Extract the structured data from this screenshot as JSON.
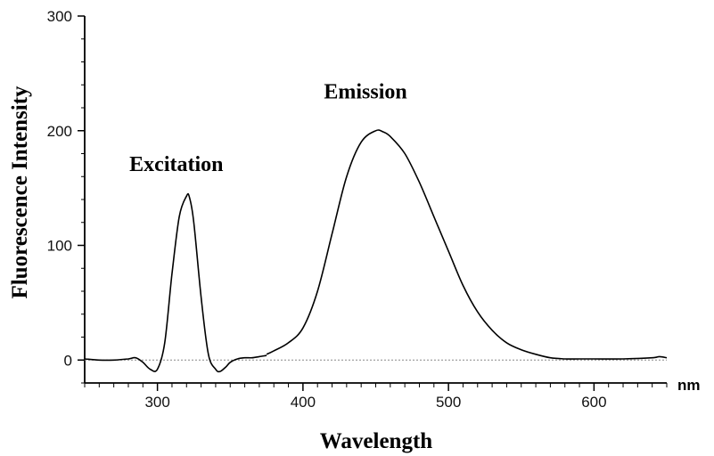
{
  "chart_data": {
    "type": "line",
    "xlabel": "Wavelength",
    "ylabel": "Fluorescence Intensity",
    "x_unit": "nm",
    "xlim": [
      250,
      650
    ],
    "ylim": [
      -20,
      300
    ],
    "x_ticks": [
      300,
      400,
      500,
      600
    ],
    "y_ticks": [
      0,
      100,
      200,
      300
    ],
    "baseline": 0,
    "grid": false,
    "line_color": "#000000",
    "annotations": [
      {
        "text": "Excitation",
        "x": 313,
        "y": 165
      },
      {
        "text": "Emission",
        "x": 443,
        "y": 228
      }
    ],
    "series": [
      {
        "name": "Excitation",
        "x": [
          250,
          260,
          270,
          280,
          285,
          290,
          295,
          300,
          305,
          310,
          315,
          320,
          322,
          325,
          330,
          335,
          340,
          343,
          347,
          350,
          355,
          360,
          365,
          370,
          375
        ],
        "y": [
          1,
          0,
          0,
          1,
          2,
          -2,
          -8,
          -8,
          15,
          75,
          125,
          143,
          142,
          120,
          55,
          5,
          -8,
          -10,
          -6,
          -2,
          1,
          2,
          2,
          3,
          4
        ]
      },
      {
        "name": "Emission",
        "x": [
          375,
          380,
          390,
          400,
          410,
          420,
          430,
          440,
          450,
          455,
          460,
          470,
          480,
          490,
          500,
          510,
          520,
          530,
          540,
          550,
          560,
          570,
          580,
          590,
          600,
          620,
          640,
          645,
          650
        ],
        "y": [
          5,
          8,
          15,
          28,
          60,
          110,
          160,
          190,
          200,
          199,
          195,
          180,
          155,
          125,
          95,
          65,
          42,
          26,
          15,
          9,
          5,
          2,
          1,
          1,
          1,
          1,
          2,
          3,
          2
        ]
      }
    ]
  }
}
